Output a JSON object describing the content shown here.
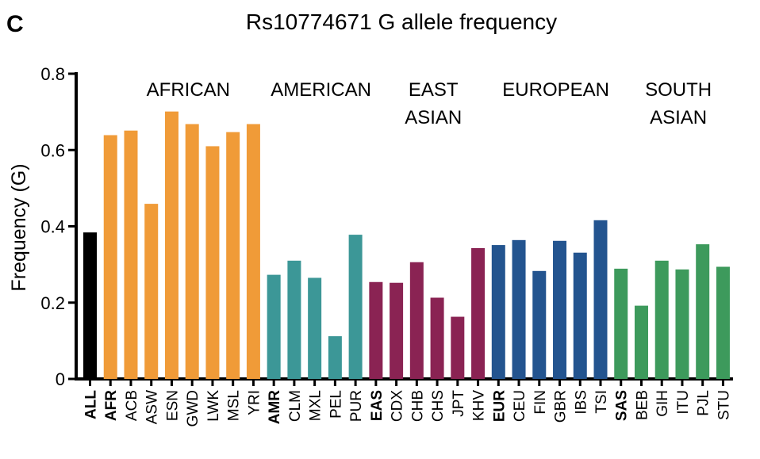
{
  "panel_label": "C",
  "chart_data": {
    "type": "bar",
    "title": "Rs10774671 G allele frequency",
    "xlabel": "",
    "ylabel": "Frequency (G)",
    "ylim": [
      0,
      0.8
    ],
    "yticks": [
      0,
      0.2,
      0.4,
      0.6,
      0.8
    ],
    "ytick_labels": [
      "0",
      "0.2",
      "0.4",
      "0.6",
      "0.8"
    ],
    "grid": false,
    "categories": [
      "ALL",
      "AFR",
      "ACB",
      "ASW",
      "ESN",
      "GWD",
      "LWK",
      "MSL",
      "YRI",
      "AMR",
      "CLM",
      "MXL",
      "PEL",
      "PUR",
      "EAS",
      "CDX",
      "CHB",
      "CHS",
      "JPT",
      "KHV",
      "EUR",
      "CEU",
      "FIN",
      "GBR",
      "IBS",
      "TSI",
      "SAS",
      "BEB",
      "GIH",
      "ITU",
      "PJL",
      "STU"
    ],
    "values": [
      0.384,
      0.639,
      0.651,
      0.459,
      0.701,
      0.668,
      0.61,
      0.647,
      0.668,
      0.273,
      0.31,
      0.265,
      0.112,
      0.378,
      0.254,
      0.252,
      0.306,
      0.213,
      0.163,
      0.343,
      0.351,
      0.364,
      0.283,
      0.362,
      0.331,
      0.416,
      0.289,
      0.192,
      0.31,
      0.287,
      0.353,
      0.294
    ],
    "bold_categories": [
      "ALL",
      "AFR",
      "AMR",
      "EAS",
      "EUR",
      "SAS"
    ],
    "groups": [
      {
        "name": [
          "AFRICAN"
        ],
        "categories": [
          "AFR",
          "ACB",
          "ASW",
          "ESN",
          "GWD",
          "LWK",
          "MSL",
          "YRI"
        ],
        "color": "#F09B38"
      },
      {
        "name": [
          "AMERICAN"
        ],
        "categories": [
          "AMR",
          "CLM",
          "MXL",
          "PEL",
          "PUR"
        ],
        "color": "#3C9797"
      },
      {
        "name": [
          "EAST",
          "ASIAN"
        ],
        "categories": [
          "EAS",
          "CDX",
          "CHB",
          "CHS",
          "JPT",
          "KHV"
        ],
        "color": "#8A2353"
      },
      {
        "name": [
          "EUROPEAN"
        ],
        "categories": [
          "EUR",
          "CEU",
          "FIN",
          "GBR",
          "IBS",
          "TSI"
        ],
        "color": "#23548F"
      },
      {
        "name": [
          "SOUTH",
          "ASIAN"
        ],
        "categories": [
          "SAS",
          "BEB",
          "GIH",
          "ITU",
          "PJL",
          "STU"
        ],
        "color": "#3D9A5C"
      }
    ],
    "all_color": "#000000"
  }
}
